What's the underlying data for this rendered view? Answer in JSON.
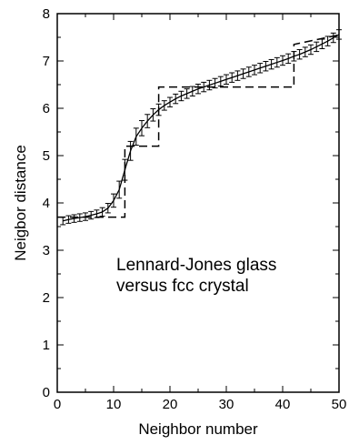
{
  "chart_data": {
    "type": "line",
    "title": "",
    "xlabel": "Neighbor number",
    "ylabel": "Neigbor distance",
    "xlim": [
      0,
      50
    ],
    "ylim": [
      0,
      8
    ],
    "grid": false,
    "x_ticks": [
      "0",
      "10",
      "20",
      "30",
      "40",
      "50"
    ],
    "y_ticks": [
      "0",
      "1",
      "2",
      "3",
      "4",
      "5",
      "6",
      "7",
      "8"
    ],
    "annotation": {
      "line1": "Lennard-Jones glass",
      "line2": "versus fcc crystal"
    },
    "series": [
      {
        "style": "solid with error bars",
        "x": [
          1,
          2,
          3,
          4,
          5,
          6,
          7,
          8,
          9,
          10,
          11,
          12,
          13,
          14,
          15,
          16,
          17,
          18,
          19,
          20,
          21,
          22,
          23,
          24,
          25,
          26,
          27,
          28,
          29,
          30,
          31,
          32,
          33,
          34,
          35,
          36,
          37,
          38,
          39,
          40,
          41,
          42,
          43,
          44,
          45,
          46,
          47,
          48,
          49,
          50
        ],
        "values": [
          3.62,
          3.65,
          3.67,
          3.69,
          3.71,
          3.74,
          3.77,
          3.81,
          3.89,
          4.05,
          4.28,
          4.7,
          5.1,
          5.4,
          5.58,
          5.73,
          5.86,
          5.97,
          6.06,
          6.13,
          6.2,
          6.26,
          6.31,
          6.36,
          6.41,
          6.45,
          6.49,
          6.53,
          6.57,
          6.61,
          6.65,
          6.69,
          6.73,
          6.77,
          6.81,
          6.85,
          6.89,
          6.93,
          6.97,
          7.01,
          7.05,
          7.1,
          7.14,
          7.19,
          7.24,
          7.3,
          7.36,
          7.42,
          7.49,
          7.56
        ],
        "errors": [
          0.08,
          0.08,
          0.08,
          0.08,
          0.08,
          0.08,
          0.08,
          0.09,
          0.1,
          0.14,
          0.18,
          0.22,
          0.2,
          0.18,
          0.16,
          0.14,
          0.13,
          0.12,
          0.1,
          0.1,
          0.1,
          0.1,
          0.1,
          0.1,
          0.1,
          0.1,
          0.1,
          0.1,
          0.1,
          0.1,
          0.1,
          0.1,
          0.1,
          0.1,
          0.1,
          0.1,
          0.1,
          0.1,
          0.1,
          0.1,
          0.1,
          0.1,
          0.1,
          0.1,
          0.1,
          0.1,
          0.1,
          0.1,
          0.1,
          0.1
        ],
        "color": "#000000"
      },
      {
        "style": "dashed step",
        "x": [
          0,
          12,
          12,
          14,
          14,
          18,
          18,
          42,
          42,
          50
        ],
        "values": [
          3.7,
          3.7,
          5.2,
          5.2,
          5.2,
          5.2,
          6.45,
          6.45,
          7.35,
          7.55
        ],
        "color": "#000000"
      }
    ]
  }
}
